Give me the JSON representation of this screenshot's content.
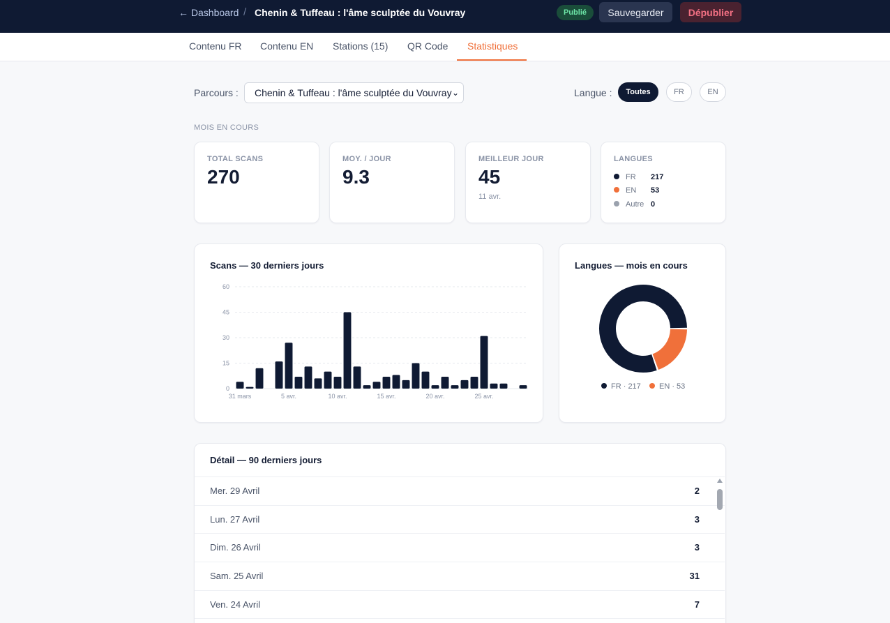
{
  "header": {
    "back_label": "← Dashboard",
    "separator": "/",
    "title": "Chenin & Tuffeau : l'âme sculptée du Vouvray",
    "status": "Publié",
    "save_label": "Sauvegarder",
    "unpublish_label": "Dépublier"
  },
  "tabs": [
    "Contenu FR",
    "Contenu EN",
    "Stations (15)",
    "QR Code",
    "Statistiques"
  ],
  "active_tab": "Statistiques",
  "filters": {
    "parcours_label": "Parcours :",
    "parcours_value": "Chenin & Tuffeau : l'âme sculptée du Vouvray",
    "langue_label": "Langue :",
    "langue_options": [
      "Toutes",
      "FR",
      "EN"
    ],
    "langue_selected": "Toutes"
  },
  "section_label": "MOIS EN COURS",
  "kpis": {
    "total_label": "TOTAL SCANS",
    "total_value": "270",
    "avg_label": "MOY. / JOUR",
    "avg_value": "9.3",
    "best_label": "MEILLEUR JOUR",
    "best_value": "45",
    "best_date": "11 avr.",
    "langs_label": "LANGUES",
    "langs": [
      {
        "name": "FR",
        "value": "217",
        "color": "#0f1a33"
      },
      {
        "name": "EN",
        "value": "53",
        "color": "#f0703a"
      },
      {
        "name": "Autre",
        "value": "0",
        "color": "#9aa1ad"
      }
    ]
  },
  "chart_titles": {
    "scans": "Scans — 30 derniers jours",
    "langs": "Langues — mois en cours"
  },
  "chart_data": [
    {
      "type": "bar",
      "title": "Scans — 30 derniers jours",
      "x": [
        "31 mars",
        "1 avr.",
        "2 avr.",
        "3 avr.",
        "4 avr.",
        "5 avr.",
        "6 avr.",
        "7 avr.",
        "8 avr.",
        "9 avr.",
        "10 avr.",
        "11 avr.",
        "12 avr.",
        "13 avr.",
        "14 avr.",
        "15 avr.",
        "16 avr.",
        "17 avr.",
        "18 avr.",
        "19 avr.",
        "20 avr.",
        "21 avr.",
        "22 avr.",
        "23 avr.",
        "24 avr.",
        "25 avr.",
        "26 avr.",
        "27 avr.",
        "28 avr.",
        "29 avr."
      ],
      "values": [
        4,
        1,
        12,
        0,
        16,
        27,
        7,
        13,
        6,
        10,
        7,
        45,
        13,
        2,
        4,
        7,
        8,
        5,
        15,
        10,
        2,
        7,
        2,
        5,
        7,
        31,
        3,
        3,
        0,
        2
      ],
      "xtick_labels": [
        "31 mars",
        "5 avr.",
        "10 avr.",
        "15 avr.",
        "20 avr.",
        "25 avr."
      ],
      "yticks": [
        0,
        15,
        30,
        45,
        60
      ],
      "ylim": [
        0,
        60
      ],
      "grid": true,
      "color": "#0f1a33"
    },
    {
      "type": "pie",
      "title": "Langues — mois en cours",
      "donut": true,
      "slices": [
        {
          "name": "FR",
          "value": 217,
          "color": "#0f1a33"
        },
        {
          "name": "EN",
          "value": 53,
          "color": "#f0703a"
        }
      ],
      "legend": [
        "FR · 217",
        "EN · 53"
      ]
    }
  ],
  "detail": {
    "title": "Détail — 90 derniers jours",
    "rows": [
      {
        "date": "Mer. 29 Avril",
        "value": "2"
      },
      {
        "date": "Lun. 27 Avril",
        "value": "3"
      },
      {
        "date": "Dim. 26 Avril",
        "value": "3"
      },
      {
        "date": "Sam. 25 Avril",
        "value": "31"
      },
      {
        "date": "Ven. 24 Avril",
        "value": "7"
      }
    ]
  }
}
